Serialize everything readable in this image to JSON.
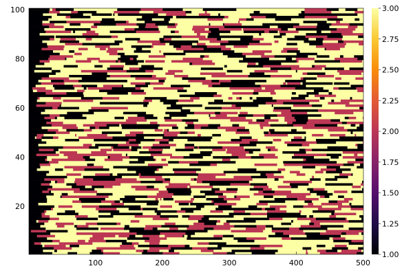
{
  "chart_data": {
    "type": "heatmap",
    "title": "",
    "xlabel": "",
    "ylabel": "",
    "xlim": [
      1,
      500
    ],
    "ylim": [
      1,
      100
    ],
    "x_ticks": [
      100,
      200,
      300,
      400,
      500
    ],
    "x_tick_labels": [
      "100",
      "200",
      "300",
      "400",
      "500"
    ],
    "y_ticks": [
      20,
      40,
      60,
      80,
      100
    ],
    "y_tick_labels": [
      "20",
      "40",
      "60",
      "80",
      "100"
    ],
    "grid": false,
    "legend": "right",
    "colorbar": {
      "colormap": "inferno",
      "range": [
        1.0,
        3.0
      ],
      "ticks": [
        1.0,
        1.25,
        1.5,
        1.75,
        2.0,
        2.25,
        2.5,
        2.75,
        3.0
      ],
      "tick_labels": [
        "1.00",
        "1.25",
        "1.50",
        "1.75",
        "2.00",
        "2.25",
        "2.50",
        "2.75",
        "3.00"
      ]
    },
    "value_colors": {
      "1": "#000004",
      "2": "#bc3754",
      "3": "#fcffa4"
    },
    "description_of_cells": "Discrete state grid (values 1, 2, 3) on a 500 x 100 lattice; each row is an independent sequence of horizontal runs."
  }
}
